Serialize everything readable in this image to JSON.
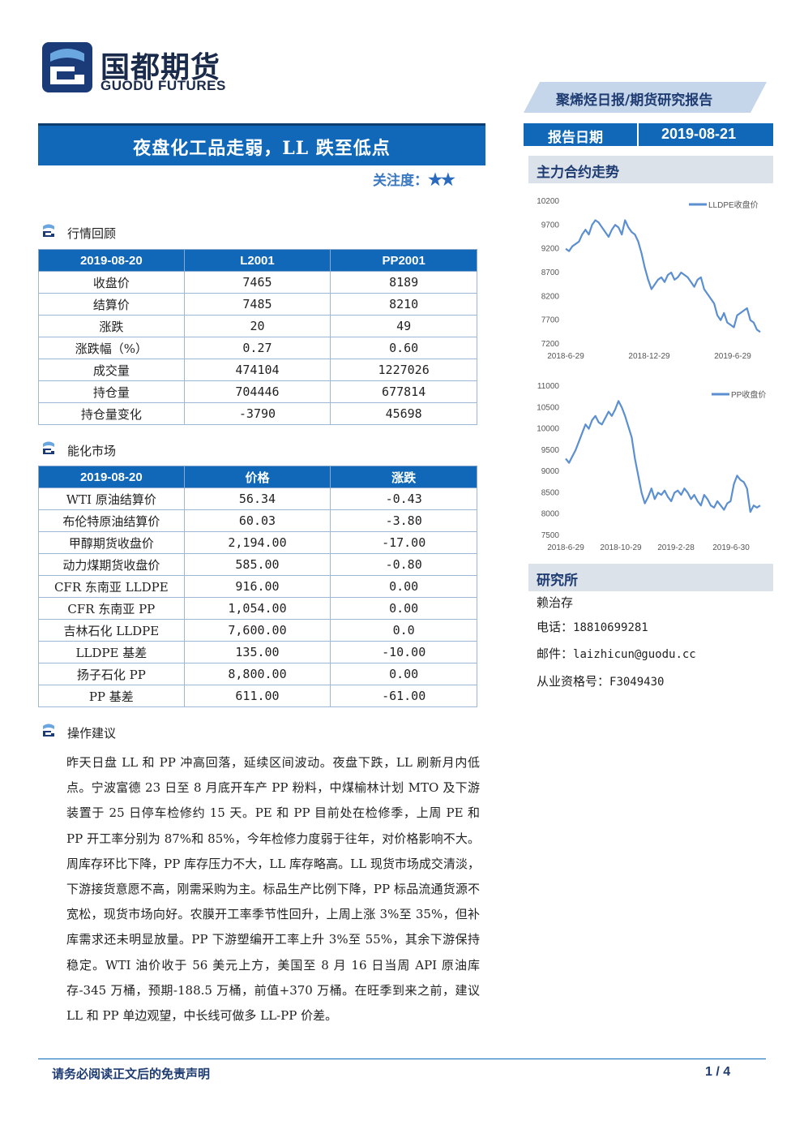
{
  "header": {
    "logo_cn": "国都期货",
    "logo_en": "GUODU FUTURES",
    "report_type": "聚烯烃日报/期货研究报告",
    "date_label": "报告日期",
    "date_value": "2019-08-21"
  },
  "title": "夜盘化工品走弱，LL 跌至低点",
  "attention": {
    "label": "关注度：",
    "stars": "★★"
  },
  "sections": {
    "market_review": "行情回顾",
    "energy_market": "能化市场",
    "operation": "操作建议"
  },
  "market_table": {
    "headers": [
      "2019-08-20",
      "L2001",
      "PP2001"
    ],
    "rows": [
      [
        "收盘价",
        "7465",
        "8189"
      ],
      [
        "结算价",
        "7485",
        "8210"
      ],
      [
        "涨跌",
        "20",
        "49"
      ],
      [
        "涨跌幅（%）",
        "0.27",
        "0.60"
      ],
      [
        "成交量",
        "474104",
        "1227026"
      ],
      [
        "持仓量",
        "704446",
        "677814"
      ],
      [
        "持仓量变化",
        "-3790",
        "45698"
      ]
    ]
  },
  "energy_table": {
    "headers": [
      "2019-08-20",
      "价格",
      "涨跌"
    ],
    "rows": [
      [
        "WTI 原油结算价",
        "56.34",
        "-0.43"
      ],
      [
        "布伦特原油结算价",
        "60.03",
        "-3.80"
      ],
      [
        "甲醇期货收盘价",
        "2,194.00",
        "-17.00"
      ],
      [
        "动力煤期货收盘价",
        "585.00",
        "-0.80"
      ],
      [
        "CFR 东南亚 LLDPE",
        "916.00",
        "0.00"
      ],
      [
        "CFR 东南亚 PP",
        "1,054.00",
        "0.00"
      ],
      [
        "吉林石化 LLDPE",
        "7,600.00",
        "0.0"
      ],
      [
        "LLDPE 基差",
        "135.00",
        "-10.00"
      ],
      [
        "扬子石化 PP",
        "8,800.00",
        "0.00"
      ],
      [
        "PP 基差",
        "611.00",
        "-61.00"
      ]
    ]
  },
  "operation_text": "昨天日盘 LL 和 PP 冲高回落，延续区间波动。夜盘下跌，LL 刷新月内低点。宁波富德 23 日至 8 月底开车产 PP 粉料，中煤榆林计划 MTO 及下游装置于 25 日停车检修约 15 天。PE 和 PP 目前处在检修季，上周 PE 和 PP 开工率分别为 87%和 85%，今年检修力度弱于往年，对价格影响不大。周库存环比下降，PP 库存压力不大，LL 库存略高。LL 现货市场成交清淡，下游接货意愿不高，刚需采购为主。标品生产比例下降，PP 标品流通货源不宽松，现货市场向好。农膜开工率季节性回升，上周上涨 3%至 35%，但补库需求还未明显放量。PP 下游塑编开工率上升 3%至 55%，其余下游保持稳定。WTI 油价收于 56 美元上方，美国至 8 月 16 日当周 API 原油库存-345 万桶，预期-188.5 万桶，前值+370 万桶。在旺季到来之前，建议 LL 和 PP 单边观望，中长线可做多 LL-PP 价差。",
  "sidebar": {
    "chart_section": "主力合约走势",
    "research_section": "研究所",
    "analyst": "赖治存",
    "phone_label": "电话：",
    "phone": "18810699281",
    "email_label": "邮件：",
    "email": "laizhicun@guodu.cc",
    "license_label": "从业资格号：",
    "license": "F3049430"
  },
  "chart_data": [
    {
      "type": "line",
      "series_name": "LLDPE收盘价",
      "x_ticks": [
        "2018-6-29",
        "2018-12-29",
        "2019-6-29"
      ],
      "yticks": [
        7200,
        7700,
        8200,
        8700,
        9200,
        9700,
        10200
      ],
      "ylim": [
        7200,
        10200
      ],
      "color": "#5b8fd0",
      "values": [
        9200,
        9150,
        9250,
        9300,
        9350,
        9500,
        9600,
        9500,
        9700,
        9800,
        9750,
        9650,
        9550,
        9450,
        9600,
        9700,
        9650,
        9500,
        9800,
        9650,
        9550,
        9500,
        9350,
        9100,
        8800,
        8550,
        8350,
        8450,
        8550,
        8600,
        8500,
        8650,
        8700,
        8550,
        8600,
        8700,
        8650,
        8600,
        8500,
        8400,
        8550,
        8600,
        8350,
        8250,
        8150,
        8050,
        7800,
        7700,
        7850,
        7650,
        7600,
        7550,
        7800,
        7850,
        7900,
        7950,
        7700,
        7650,
        7500,
        7450
      ]
    },
    {
      "type": "line",
      "series_name": "PP收盘价",
      "x_ticks": [
        "2018-6-29",
        "2018-10-29",
        "2019-2-28",
        "2019-6-30"
      ],
      "yticks": [
        7500,
        8000,
        8500,
        9000,
        9500,
        10000,
        10500,
        11000
      ],
      "ylim": [
        7500,
        11000
      ],
      "color": "#5b8fd0",
      "values": [
        9300,
        9200,
        9350,
        9500,
        9700,
        9900,
        10100,
        10000,
        10200,
        10300,
        10150,
        10100,
        10250,
        10400,
        10300,
        10450,
        10650,
        10500,
        10300,
        10050,
        9800,
        9300,
        8900,
        8500,
        8250,
        8400,
        8600,
        8350,
        8500,
        8450,
        8550,
        8400,
        8300,
        8500,
        8550,
        8450,
        8600,
        8500,
        8350,
        8450,
        8300,
        8200,
        8450,
        8350,
        8200,
        8150,
        8300,
        8200,
        8100,
        8250,
        8300,
        8700,
        8900,
        8800,
        8750,
        8600,
        8050,
        8200,
        8150,
        8200
      ]
    }
  ],
  "footer": {
    "disclaimer": "请务必阅读正文后的免责声明",
    "page": "1 / 4"
  }
}
